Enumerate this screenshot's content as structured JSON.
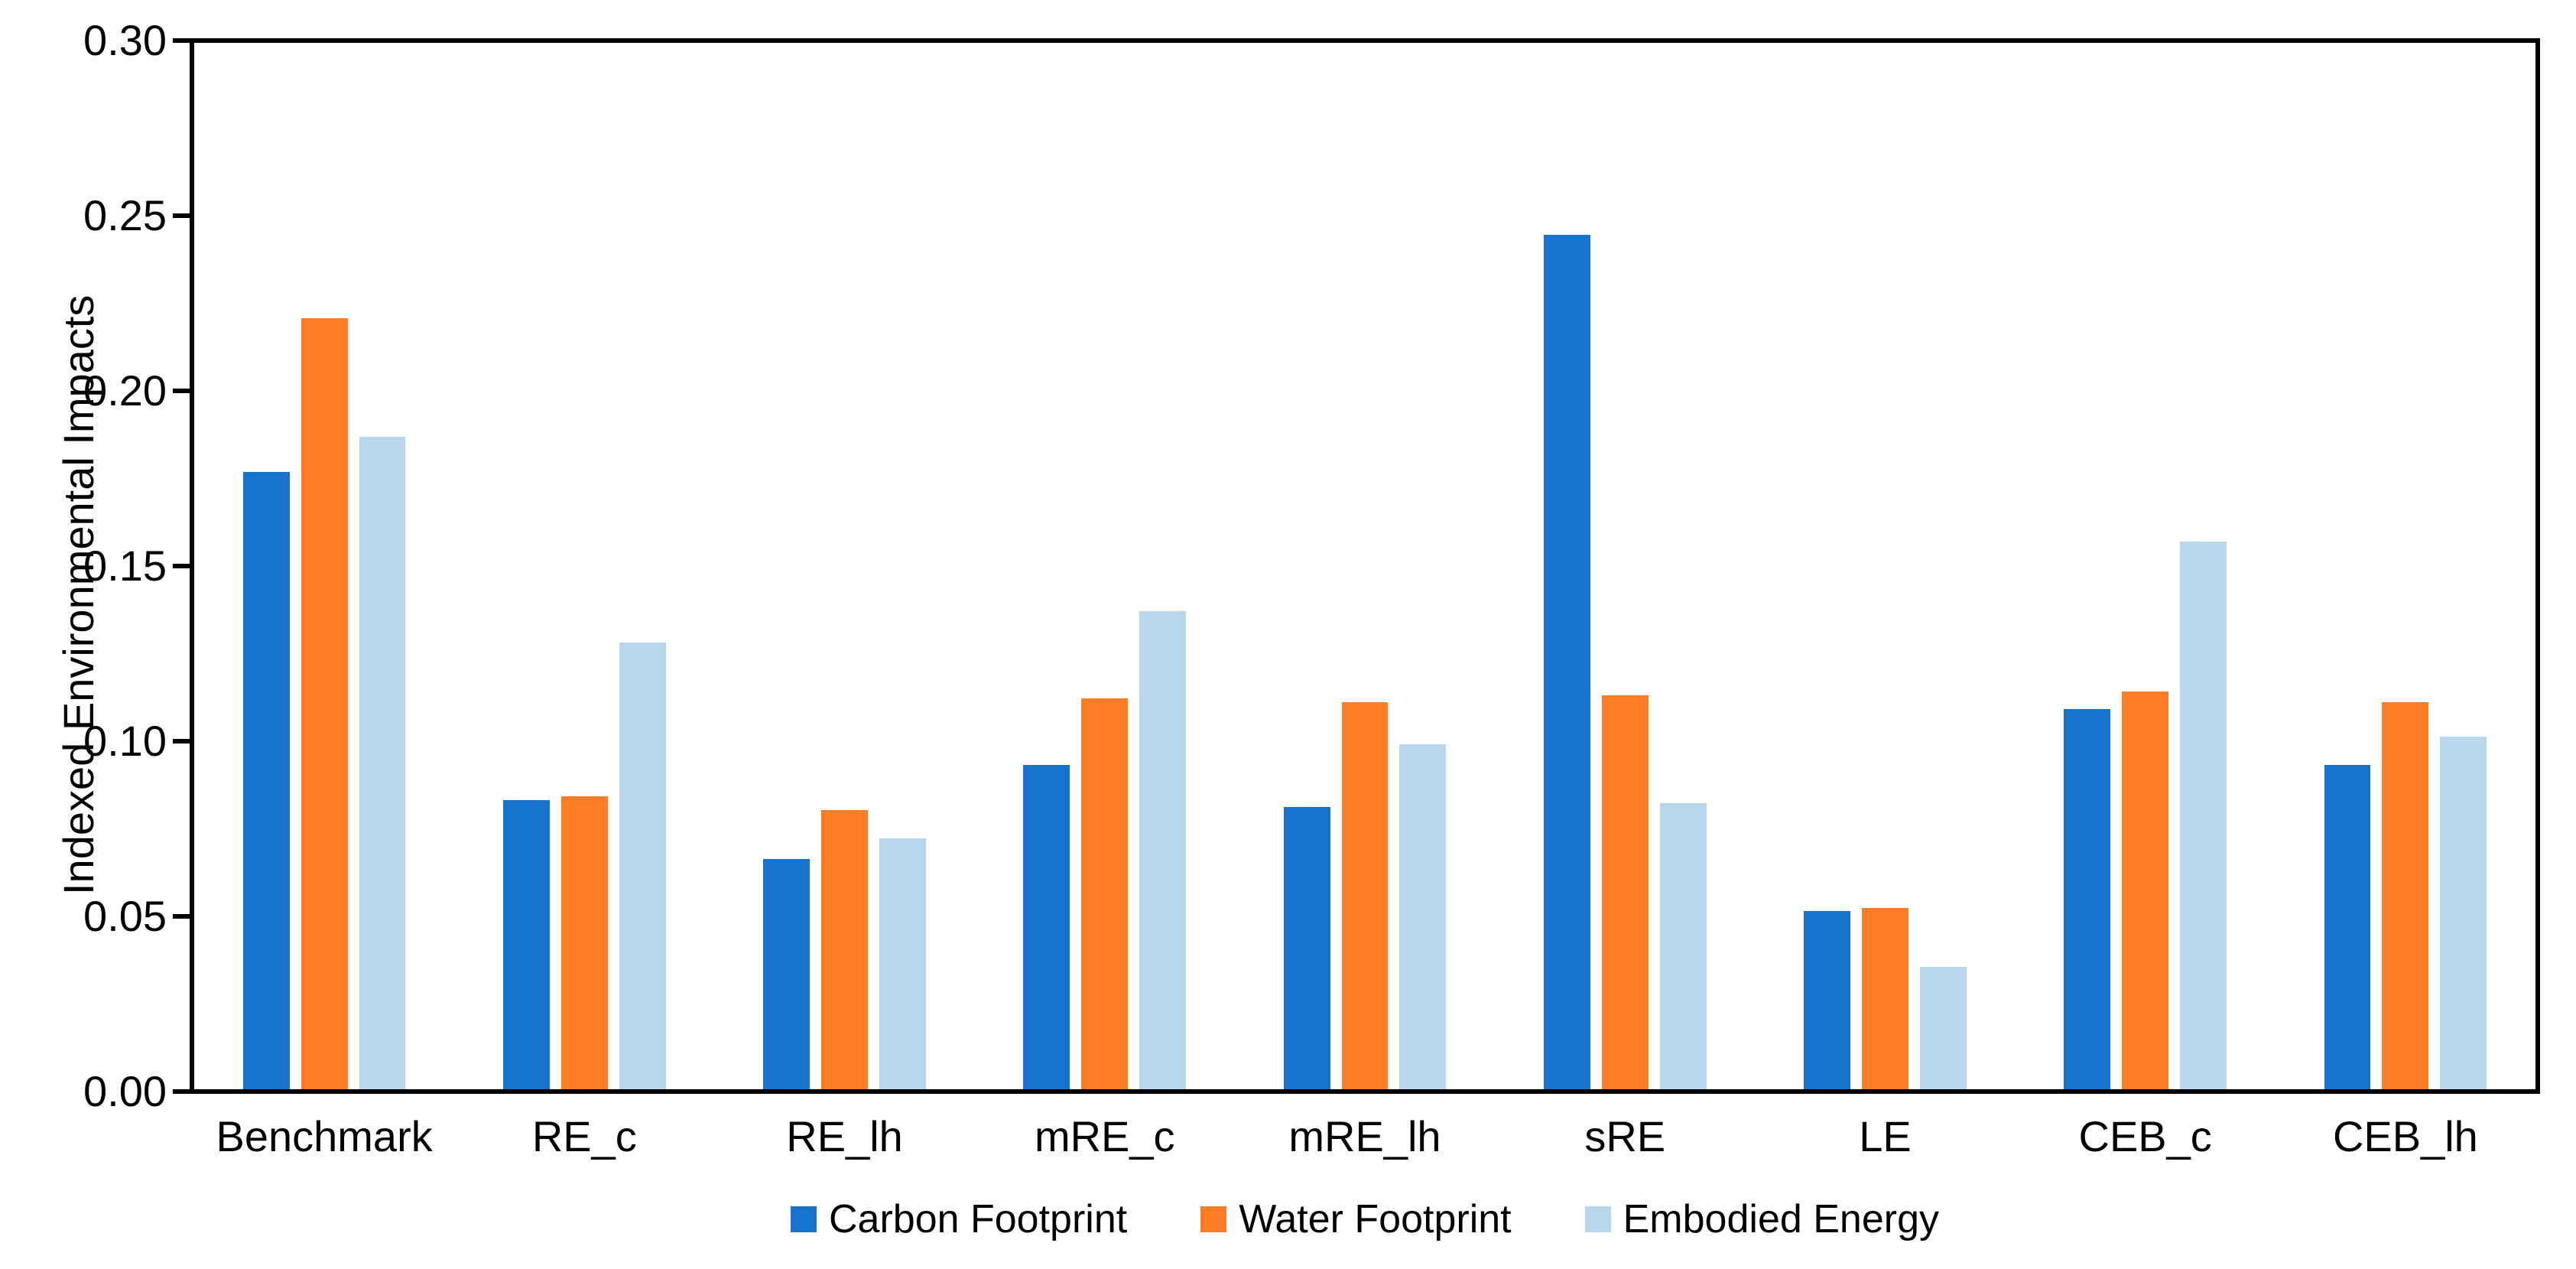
{
  "chart_data": {
    "type": "bar",
    "title": "",
    "xlabel": "",
    "ylabel": "Indexed Environmental Impacts",
    "ylim": [
      0,
      0.3
    ],
    "ytick_step": 0.05,
    "yticks": [
      "0.00",
      "0.05",
      "0.10",
      "0.15",
      "0.20",
      "0.25",
      "0.30"
    ],
    "grid": false,
    "legend_position": "bottom",
    "axis_color": "#000000",
    "background_color": "#ffffff",
    "categories": [
      "Benchmark",
      "RE_c",
      "RE_lh",
      "mRE_c",
      "mRE_lh",
      "sRE",
      "LE",
      "CEB_c",
      "CEB_lh"
    ],
    "series": [
      {
        "name": "Carbon Footprint",
        "color": "#1873CC",
        "values": [
          0.177,
          0.083,
          0.066,
          0.093,
          0.081,
          0.245,
          0.051,
          0.109,
          0.093
        ]
      },
      {
        "name": "Water Footprint",
        "color": "#FC7D24",
        "values": [
          0.221,
          0.084,
          0.08,
          0.112,
          0.111,
          0.113,
          0.052,
          0.114,
          0.111
        ]
      },
      {
        "name": "Embodied Energy",
        "color": "#B6D7EC",
        "values": [
          0.187,
          0.128,
          0.072,
          0.137,
          0.099,
          0.082,
          0.035,
          0.157,
          0.101
        ]
      }
    ]
  }
}
